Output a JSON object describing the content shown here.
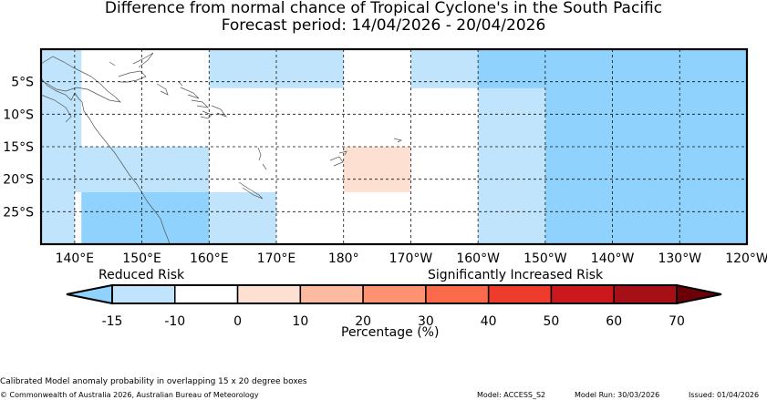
{
  "title": "Difference from normal chance of Tropical Cyclone's in the South Pacific",
  "subtitle": "Forecast period: 14/04/2026 - 20/04/2026",
  "map": {
    "lon_range": [
      135,
      240
    ],
    "lat_range": [
      -30,
      0
    ],
    "lat_ticks": [
      {
        "lat": -5,
        "label": "5°S"
      },
      {
        "lat": -10,
        "label": "10°S"
      },
      {
        "lat": -15,
        "label": "15°S"
      },
      {
        "lat": -20,
        "label": "20°S"
      },
      {
        "lat": -25,
        "label": "25°S"
      }
    ],
    "lon_ticks": [
      {
        "lon": 140,
        "label": "140°E"
      },
      {
        "lon": 150,
        "label": "150°E"
      },
      {
        "lon": 160,
        "label": "160°E"
      },
      {
        "lon": 170,
        "label": "170°E"
      },
      {
        "lon": 180,
        "label": "180°"
      },
      {
        "lon": 190,
        "label": "170°W"
      },
      {
        "lon": 200,
        "label": "160°W"
      },
      {
        "lon": 210,
        "label": "150°W"
      },
      {
        "lon": 220,
        "label": "140°W"
      },
      {
        "lon": 230,
        "label": "130°W"
      },
      {
        "lon": 240,
        "label": "120°W"
      }
    ],
    "colors": {
      "light_blue": "#bfe4fb",
      "mid_blue": "#8fd2fd",
      "light_orange": "#fde0d2",
      "coastline": "#555555"
    },
    "regions": [
      {
        "lon": [
          135,
          140
        ],
        "lat": [
          -30,
          0
        ],
        "category": "light_blue"
      },
      {
        "lon": [
          140,
          141
        ],
        "lat": [
          -15,
          0
        ],
        "category": "light_blue"
      },
      {
        "lon": [
          140,
          160
        ],
        "lat": [
          -22,
          -15
        ],
        "category": "light_blue"
      },
      {
        "lon": [
          141,
          160
        ],
        "lat": [
          -30,
          -22
        ],
        "category": "mid_blue"
      },
      {
        "lon": [
          160,
          170
        ],
        "lat": [
          -30,
          -22
        ],
        "category": "light_blue"
      },
      {
        "lon": [
          160,
          180
        ],
        "lat": [
          -6,
          0
        ],
        "category": "light_blue"
      },
      {
        "lon": [
          180,
          190
        ],
        "lat": [
          -22,
          -15
        ],
        "category": "light_orange"
      },
      {
        "lon": [
          190,
          200
        ],
        "lat": [
          -6,
          0
        ],
        "category": "light_blue"
      },
      {
        "lon": [
          200,
          210
        ],
        "lat": [
          -30,
          0
        ],
        "category": "light_blue"
      },
      {
        "lon": [
          200,
          240
        ],
        "lat": [
          -6,
          0
        ],
        "category": "mid_blue"
      },
      {
        "lon": [
          210,
          240
        ],
        "lat": [
          -30,
          0
        ],
        "category": "mid_blue"
      }
    ]
  },
  "colorbar": {
    "label_left": "Reduced Risk",
    "label_right": "Significantly Increased Risk",
    "axis_label": "Percentage (%)",
    "ticks": [
      "-15",
      "-10",
      "0",
      "10",
      "20",
      "30",
      "40",
      "50",
      "60",
      "70"
    ],
    "under_color": "#8fd2fd",
    "over_color": "#6b0008",
    "segment_colors": [
      "#bfe4fb",
      "#ffffff",
      "#fde0d2",
      "#fcbba1",
      "#fc9272",
      "#fb6a4a",
      "#ef3b2c",
      "#cb181d",
      "#a50f15"
    ]
  },
  "footer": {
    "note": "Calibrated Model anomaly probability in overlapping 15 x 20 degree boxes",
    "copyright": "© Commonwealth of Australia 2026, Australian Bureau of Meteorology",
    "model": "Model: ACCESS_S2",
    "model_run": "Model Run: 30/03/2026",
    "issued": "Issued: 01/04/2026"
  }
}
